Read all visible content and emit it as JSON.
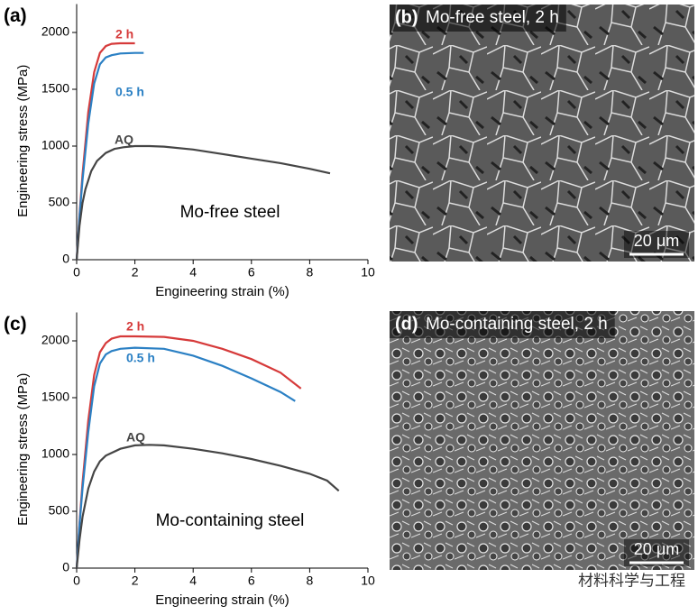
{
  "chart_data": [
    {
      "type": "line",
      "panel_label": "(a)",
      "annotation": "Mo-free steel",
      "xlabel": "Engineering strain (%)",
      "ylabel": "Engineering stress (MPa)",
      "xlim": [
        0,
        10
      ],
      "xticks": [
        0,
        2,
        4,
        6,
        8,
        10
      ],
      "ylim": [
        0,
        2250
      ],
      "yticks": [
        0,
        500,
        1000,
        1500,
        2000
      ],
      "series": [
        {
          "name": "2 h",
          "color": "#d63a3a",
          "x": [
            0,
            0.1,
            0.2,
            0.4,
            0.6,
            0.8,
            1.0,
            1.2,
            1.5,
            2.0
          ],
          "values": [
            0,
            400,
            750,
            1300,
            1650,
            1820,
            1880,
            1900,
            1905,
            1905
          ]
        },
        {
          "name": "0.5 h",
          "color": "#2b80c4",
          "x": [
            0,
            0.1,
            0.2,
            0.4,
            0.6,
            0.8,
            1.0,
            1.2,
            1.5,
            2.0,
            2.3
          ],
          "values": [
            0,
            380,
            700,
            1200,
            1550,
            1720,
            1780,
            1800,
            1815,
            1820,
            1820
          ]
        },
        {
          "name": "AQ",
          "color": "#454545",
          "x": [
            0,
            0.1,
            0.2,
            0.3,
            0.5,
            0.7,
            1.0,
            1.3,
            1.6,
            2,
            2.5,
            3,
            4,
            5,
            6,
            7,
            8,
            8.7
          ],
          "values": [
            0,
            300,
            500,
            620,
            780,
            870,
            940,
            975,
            990,
            1000,
            1000,
            995,
            970,
            930,
            890,
            850,
            800,
            760
          ]
        }
      ]
    },
    {
      "type": "line",
      "panel_label": "(c)",
      "annotation": "Mo-containing steel",
      "xlabel": "Engineering strain (%)",
      "ylabel": "Engineering stress (MPa)",
      "xlim": [
        0,
        10
      ],
      "xticks": [
        0,
        2,
        4,
        6,
        8,
        10
      ],
      "ylim": [
        0,
        2250
      ],
      "yticks": [
        0,
        500,
        1000,
        1500,
        2000
      ],
      "series": [
        {
          "name": "2 h",
          "color": "#d63a3a",
          "x": [
            0,
            0.1,
            0.2,
            0.4,
            0.6,
            0.8,
            1.0,
            1.2,
            1.5,
            2,
            3,
            4,
            5,
            6,
            7,
            7.7
          ],
          "values": [
            0,
            400,
            750,
            1300,
            1700,
            1900,
            1980,
            2020,
            2040,
            2040,
            2035,
            2000,
            1930,
            1840,
            1720,
            1580
          ]
        },
        {
          "name": "0.5 h",
          "color": "#2b80c4",
          "x": [
            0,
            0.1,
            0.2,
            0.4,
            0.6,
            0.8,
            1.0,
            1.2,
            1.5,
            2,
            3,
            4,
            5,
            6,
            7,
            7.5
          ],
          "values": [
            0,
            380,
            700,
            1200,
            1600,
            1800,
            1880,
            1910,
            1930,
            1940,
            1930,
            1870,
            1780,
            1670,
            1550,
            1470
          ]
        },
        {
          "name": "AQ",
          "color": "#454545",
          "x": [
            0,
            0.1,
            0.2,
            0.4,
            0.6,
            0.8,
            1.0,
            1.5,
            2,
            2.5,
            3,
            4,
            5,
            6,
            7,
            8,
            8.6,
            9.0
          ],
          "values": [
            0,
            250,
            450,
            700,
            850,
            940,
            990,
            1050,
            1080,
            1085,
            1080,
            1050,
            1010,
            960,
            900,
            830,
            770,
            680
          ]
        }
      ]
    }
  ],
  "images": [
    {
      "panel_label": "(b)",
      "caption": "Mo-free steel, 2 h",
      "scale_bar": "20 μm"
    },
    {
      "panel_label": "(d)",
      "caption": "Mo-containing steel, 2 h",
      "scale_bar": "20 μm"
    }
  ],
  "watermark": "材料科学与工程"
}
